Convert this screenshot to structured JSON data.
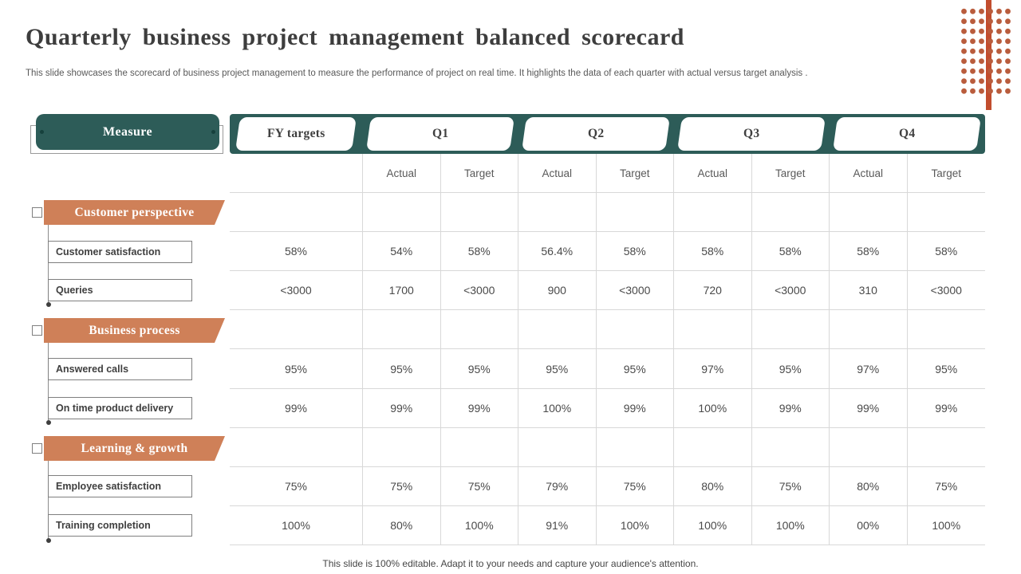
{
  "slide": {
    "title": "Quarterly business project management balanced scorecard",
    "subtitle": "This slide showcases the scorecard of business project management to measure the performance of project on real time. It highlights the data of  each quarter  with actual  versus target analysis .",
    "footer": "This slide is 100% editable. Adapt it to your needs and capture your audience's attention."
  },
  "sidebar": {
    "measure_label": "Measure",
    "groups": [
      {
        "header": "Customer perspective",
        "items": [
          "Customer  satisfaction",
          "Queries"
        ]
      },
      {
        "header": "Business process",
        "items": [
          "Answered calls",
          "On time product delivery"
        ]
      },
      {
        "header": "Learning & growth",
        "items": [
          "Employee satisfaction",
          "Training completion"
        ]
      }
    ]
  },
  "table": {
    "header": {
      "fy": "FY targets",
      "quarters": [
        "Q1",
        "Q2",
        "Q3",
        "Q4"
      ]
    },
    "subheader": [
      "Actual",
      "Target",
      "Actual",
      "Target",
      "Actual",
      "Target",
      "Actual",
      "Target"
    ],
    "rows": [
      {
        "label": "Customer satisfaction",
        "cells": [
          "58%",
          "54%",
          "58%",
          "56.4%",
          "58%",
          "58%",
          "58%",
          "58%",
          "58%"
        ]
      },
      {
        "label": "Queries",
        "cells": [
          "<3000",
          "1700",
          "<3000",
          "900",
          "<3000",
          "720",
          "<3000",
          "310",
          "<3000"
        ]
      },
      {
        "label": "Answered calls",
        "cells": [
          "95%",
          "95%",
          "95%",
          "95%",
          "95%",
          "97%",
          "95%",
          "97%",
          "95%"
        ]
      },
      {
        "label": "On time product delivery",
        "cells": [
          "99%",
          "99%",
          "99%",
          "100%",
          "99%",
          "100%",
          "99%",
          "99%",
          "99%"
        ]
      },
      {
        "label": "Employee satisfaction",
        "cells": [
          "75%",
          "75%",
          "75%",
          "79%",
          "75%",
          "80%",
          "75%",
          "80%",
          "75%"
        ]
      },
      {
        "label": "Training completion",
        "cells": [
          "100%",
          "80%",
          "100%",
          "91%",
          "100%",
          "100%",
          "100%",
          "00%",
          "100%"
        ]
      }
    ]
  },
  "colors": {
    "teal": "#2d5c58",
    "orange": "#cf8058",
    "dot": "#b95c3c",
    "bar": "#c24d2e"
  }
}
